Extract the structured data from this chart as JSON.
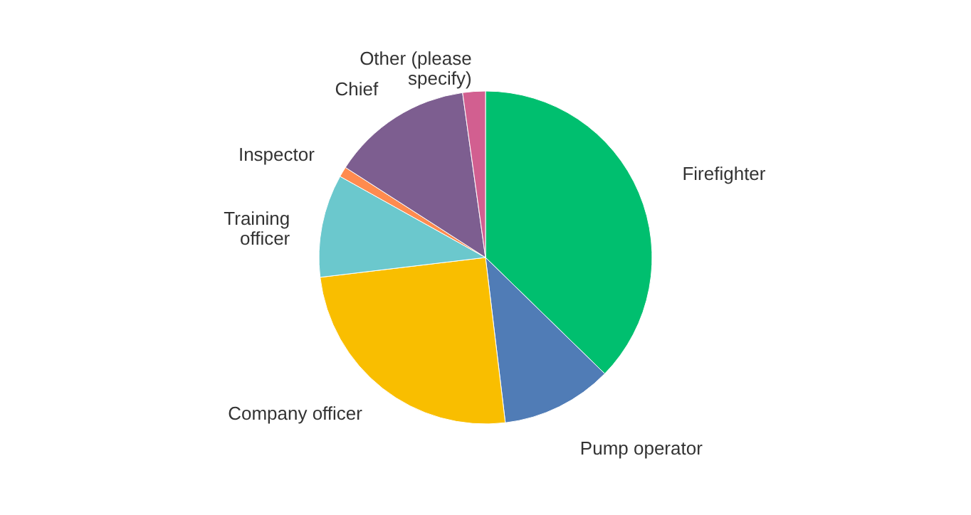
{
  "chart_data": {
    "type": "pie",
    "categories": [
      "Firefighter",
      "Pump operator",
      "Company officer",
      "Training officer",
      "Inspector",
      "Chief",
      "Other (please specify)"
    ],
    "values": [
      37.3,
      10.8,
      25,
      10,
      1,
      13.7,
      2.2
    ],
    "colors": [
      "#00bf6f",
      "#507cb6",
      "#f9be00",
      "#6bc8cd",
      "#ff8b4f",
      "#7d5e90",
      "#d25f90"
    ]
  }
}
